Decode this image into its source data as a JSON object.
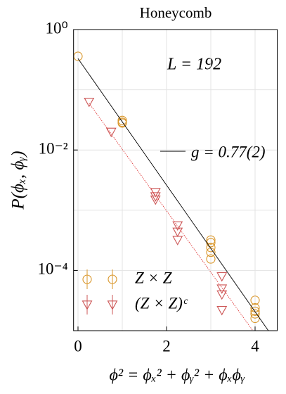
{
  "chart_data": {
    "type": "scatter",
    "title": "Honeycomb",
    "x_label": "ϕ² = ϕₓ² + ϕᵧ² + ϕₓϕᵧ",
    "y_label": "P(ϕₓ, ϕᵧ)",
    "annotation": "L = 192",
    "log_y": true,
    "grid": true,
    "xlim": [
      -0.1,
      4.5
    ],
    "ylim": [
      1e-05,
      1
    ],
    "xticks": [
      0,
      2,
      4
    ],
    "yticks": [
      {
        "value": 1,
        "label": "10⁰"
      },
      {
        "value": 0.01,
        "label": "10⁻²"
      },
      {
        "value": 0.0001,
        "label": "10⁻⁴"
      }
    ],
    "x_grid": [
      0,
      1,
      2,
      3,
      4
    ],
    "y_grid": [
      1,
      0.1,
      0.01,
      0.001,
      0.0001
    ],
    "series": [
      {
        "name": "Z × Z",
        "kind": "scatter",
        "marker": "circle",
        "color": "#d9962a",
        "x": [
          0,
          1,
          1,
          1,
          3,
          3,
          3,
          3,
          3,
          4,
          4,
          4,
          4,
          4
        ],
        "values": [
          0.36,
          0.031,
          0.029,
          0.028,
          0.00032,
          0.00029,
          0.00024,
          0.0002,
          0.000155,
          3.2e-05,
          2.4e-05,
          2.1e-05,
          1.9e-05,
          1.6e-05
        ]
      },
      {
        "name": "(Z × Z)ᶜ",
        "kind": "scatter",
        "marker": "triangle",
        "color": "#cc5555",
        "x": [
          0.25,
          0.75,
          1.75,
          1.75,
          1.75,
          2.25,
          2.25,
          2.25,
          3.25,
          3.25,
          3.25,
          3.25
        ],
        "values": [
          0.063,
          0.02,
          0.002,
          0.0017,
          0.0015,
          0.00056,
          0.00044,
          0.00032,
          8e-05,
          5e-05,
          4e-05,
          2.2e-05
        ]
      },
      {
        "name": "g = 0.77(2)",
        "kind": "line",
        "color": "#000000",
        "x": [
          0,
          4.3
        ],
        "values": [
          0.33,
          1e-05
        ]
      },
      {
        "kind": "dotted",
        "color": "#e03a3a",
        "x": [
          0.25,
          3.95
        ],
        "values": [
          0.06,
          1e-05
        ]
      }
    ]
  }
}
